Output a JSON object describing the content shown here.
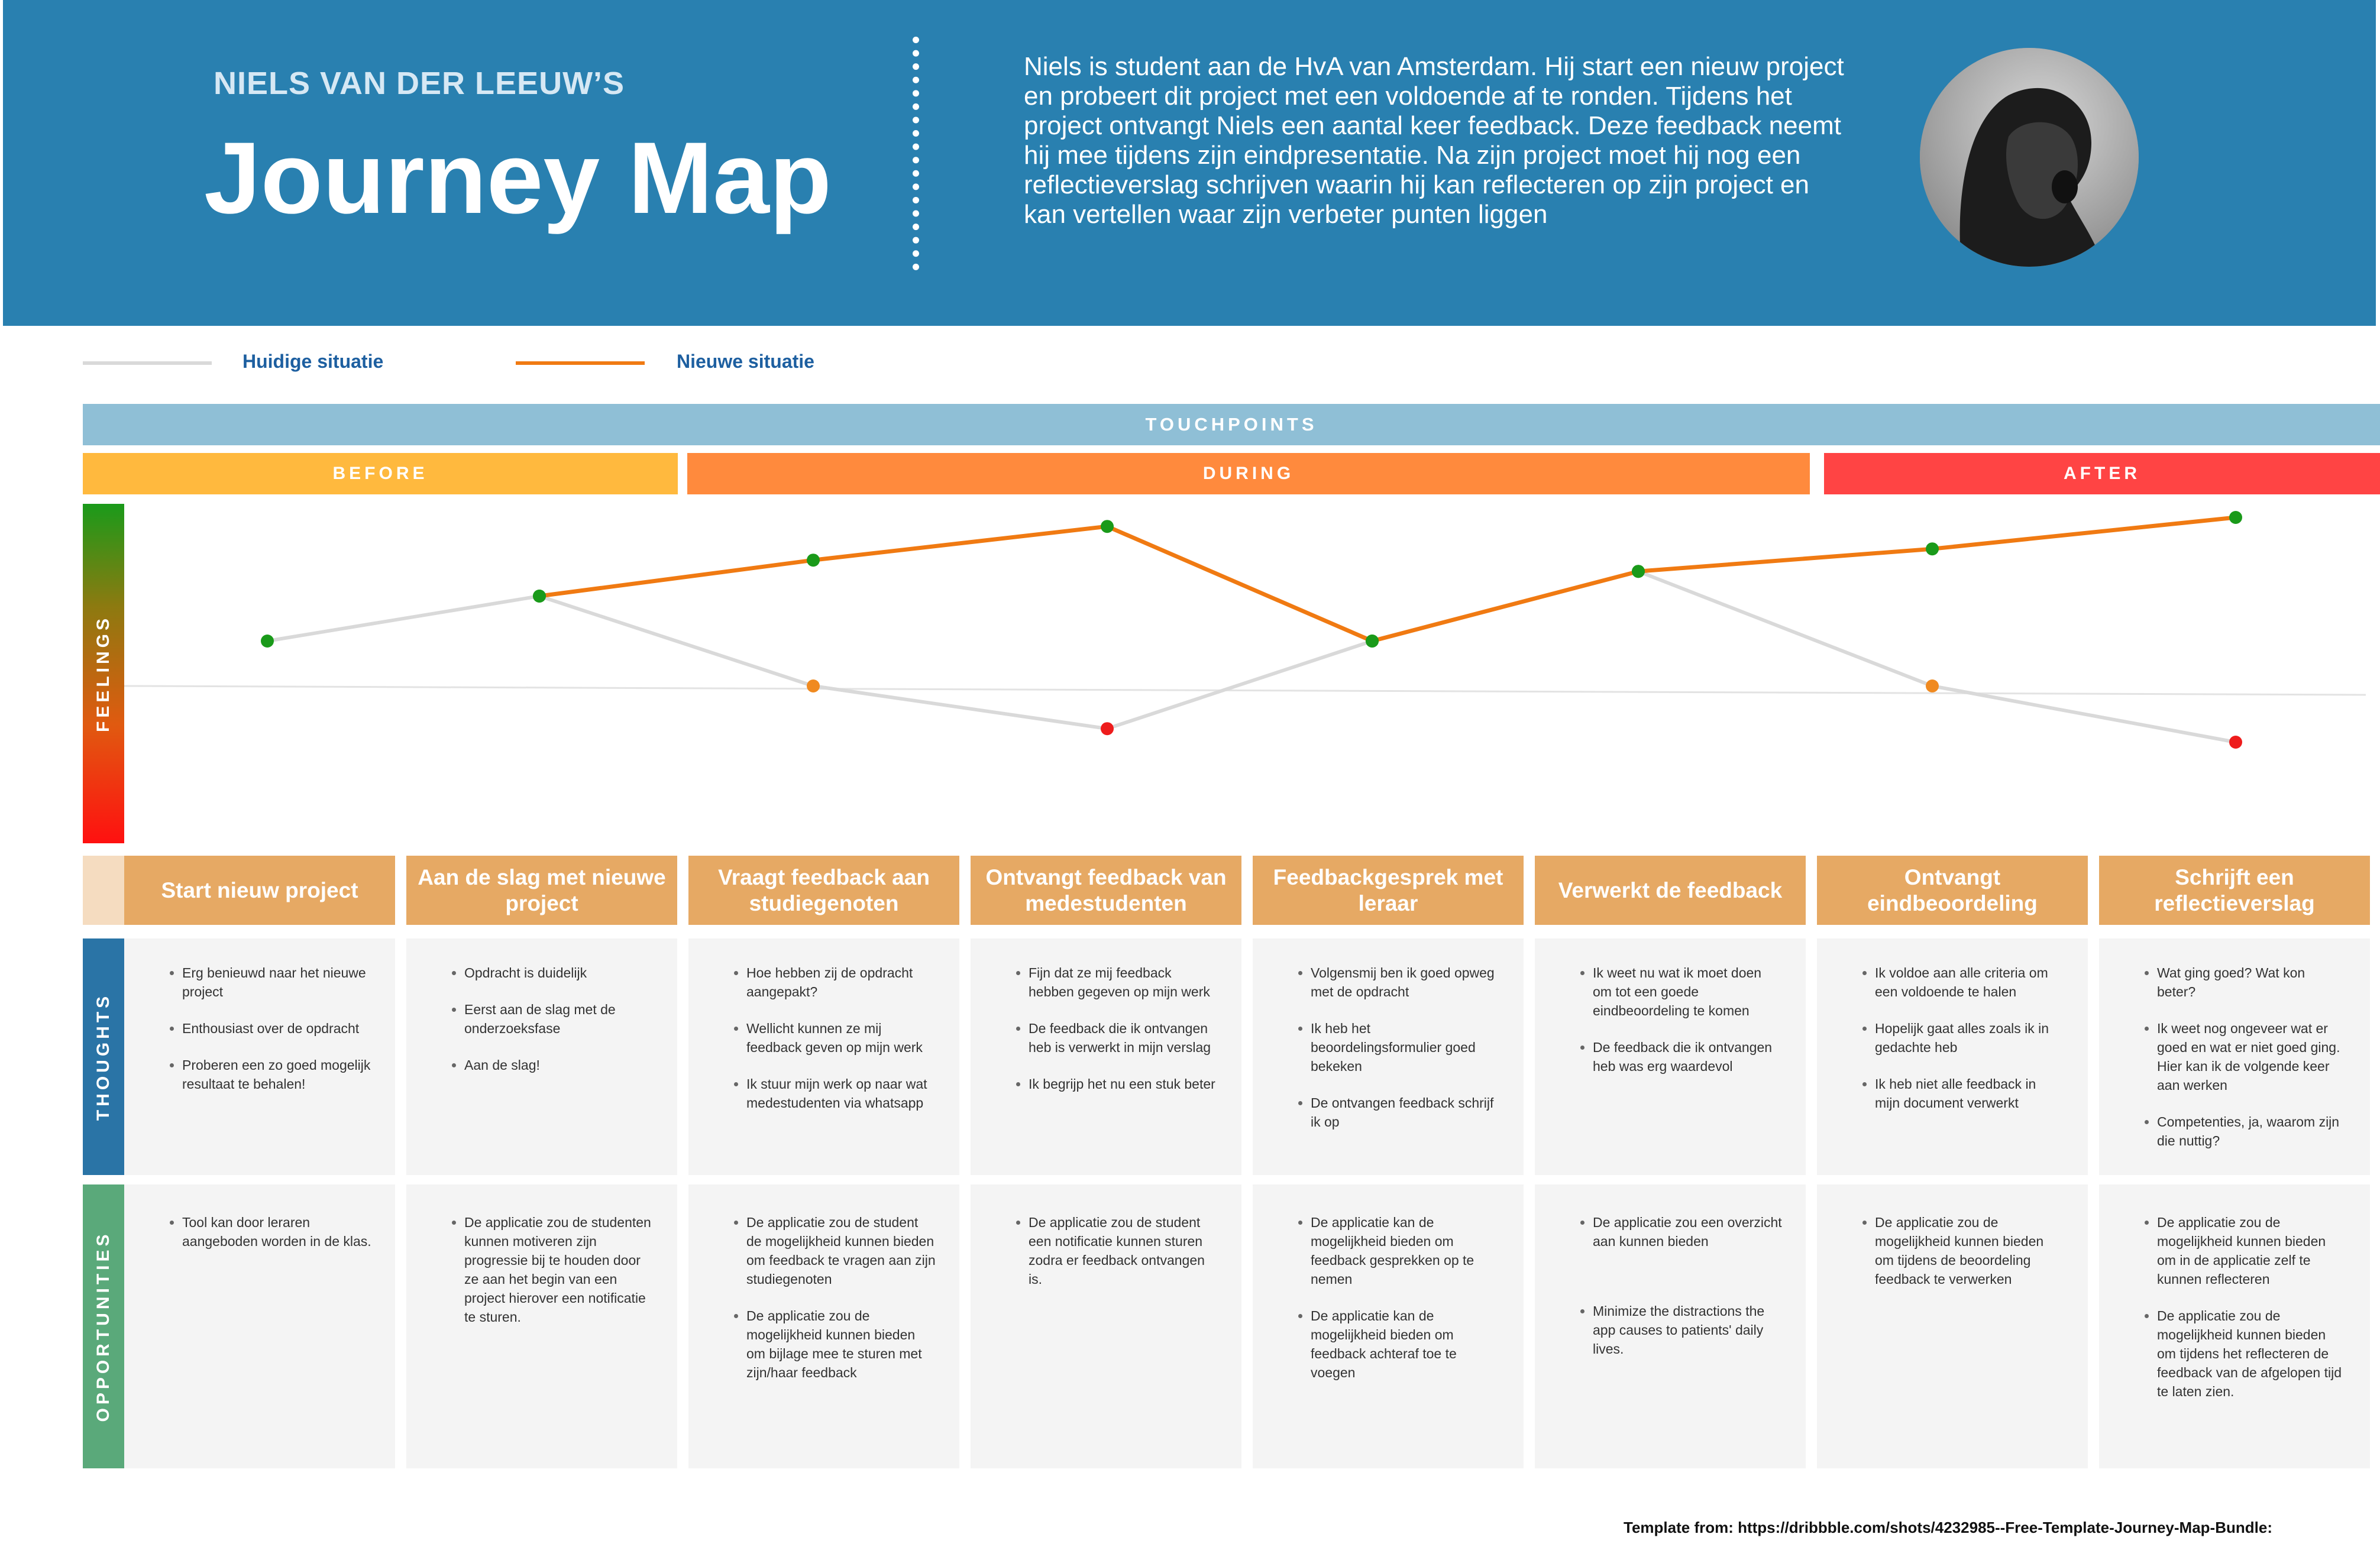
{
  "header": {
    "subtitle": "NIELS VAN DER LEEUW’S",
    "title": "Journey Map",
    "intro": "Niels is student aan de HvA van Amsterdam. Hij start een nieuw project en probeert dit project met een voldoende af te ronden. Tijdens het project ontvangt Niels een aantal keer feedback. Deze feedback neemt hij mee tijdens zijn eindpresentatie. Na zijn project moet hij nog een reflectieverslag schrijven waarin hij kan reflecteren op zijn project en kan vertellen waar zijn verbeter punten liggen"
  },
  "legend": {
    "current": "Huidige situatie",
    "new": "Nieuwe situatie",
    "current_color": "#d9d9d9",
    "new_color": "#f07a12"
  },
  "touchpoints_label": "TOUCHPOINTS",
  "phases": {
    "before": "BEFORE",
    "during": "DURING",
    "after": "AFTER",
    "before_color": "#ffb93e",
    "during_color": "#ff8a3d",
    "after_color": "#ff4444"
  },
  "side_labels": {
    "feelings": "FEELINGS",
    "thoughts": "THOUGHTS",
    "opportunities": "OPPORTUNITIES"
  },
  "steps": [
    "Start nieuw project",
    "Aan de slag met nieuwe project",
    "Vraagt feedback aan studiegenoten",
    "Ontvangt feedback van medestudenten",
    "Feedbackgesprek met leraar",
    "Verwerkt de feedback",
    "Ontvangt eindbeoordeling",
    "Schrijft een reflectieverslag"
  ],
  "thoughts": [
    [
      "Erg benieuwd naar het nieuwe project",
      "Enthousiast over de opdracht",
      "Proberen een zo goed mogelijk resultaat te behalen!"
    ],
    [
      "Opdracht is duidelijk",
      "Eerst aan de slag met de onderzoeksfase",
      "Aan de slag!"
    ],
    [
      "Hoe hebben zij de opdracht aangepakt?",
      "Wellicht kunnen ze mij feedback geven op mijn werk",
      "Ik stuur mijn werk op naar wat medestudenten via whatsapp"
    ],
    [
      "Fijn dat ze mij feedback hebben gegeven op mijn werk",
      "De feedback die ik ontvangen heb is verwerkt in mijn verslag",
      "Ik begrijp het nu een stuk beter"
    ],
    [
      "Volgensmij ben ik goed opweg met de opdracht",
      "Ik heb het beoordelingsformulier goed bekeken",
      "De ontvangen feedback schrijf ik op"
    ],
    [
      "Ik weet nu wat ik moet doen om tot een goede eindbeoordeling te komen",
      "De feedback die ik ontvangen heb was erg waardevol"
    ],
    [
      "Ik voldoe aan alle criteria om een voldoende te halen",
      "Hopelijk gaat alles zoals ik in gedachte heb",
      "Ik heb niet alle feedback in mijn document verwerkt"
    ],
    [
      "Wat ging goed? Wat kon beter?",
      "Ik weet nog ongeveer wat er goed en wat er niet goed ging. Hier kan ik de volgende keer aan werken",
      "Competenties, ja, waarom zijn die nuttig?"
    ]
  ],
  "opportunities": [
    [
      "Tool kan door leraren aangeboden worden in de klas."
    ],
    [
      "De applicatie zou de studenten kunnen motiveren zijn progressie bij te houden door ze aan het begin van een project hierover een notificatie te sturen."
    ],
    [
      "De applicatie zou de student de mogelijkheid kunnen bieden om feedback te vragen aan zijn studiegenoten",
      "De applicatie zou de mogelijkheid kunnen bieden om bijlage mee te sturen met zijn/haar feedback"
    ],
    [
      "De applicatie zou de student een notificatie kunnen sturen zodra er feedback ontvangen is."
    ],
    [
      "De applicatie kan de mogelijkheid bieden om feedback gesprekken op te nemen",
      "De applicatie kan de mogelijkheid bieden om feedback achteraf toe te voegen"
    ],
    [
      "De applicatie zou een overzicht aan kunnen bieden",
      "Minimize the distractions the app causes to patients' daily lives."
    ],
    [
      "De applicatie zou de mogelijkheid kunnen bieden om tijdens de beoordeling feedback te verwerken"
    ],
    [
      "De applicatie zou de mogelijkheid kunnen bieden om in de applicatie zelf te kunnen reflecteren",
      "De applicatie zou de mogelijkheid kunnen bieden om tijdens het reflecteren de feedback van de afgelopen tijd te laten zien."
    ]
  ],
  "chart_data": {
    "type": "line",
    "ylim": [
      -1,
      1
    ],
    "series": [
      {
        "name": "Huidige situatie",
        "color": "#d9d9d9",
        "points": [
          {
            "x": 0,
            "y": 0.2,
            "marker": "#1a9a1a"
          },
          {
            "x": 1,
            "y": 0.4,
            "marker": "#1a9a1a"
          },
          {
            "x": 2,
            "y": 0.0,
            "marker": "#f08a20"
          },
          {
            "x": 3,
            "y": -0.19,
            "marker": "#ee1c1c"
          },
          {
            "x": 4,
            "y": 0.2,
            "marker": "#1a9a1a"
          },
          {
            "x": 5,
            "y": 0.51,
            "marker": "#1a9a1a"
          },
          {
            "x": 6,
            "y": 0.0,
            "marker": "#f08a20"
          },
          {
            "x": 7,
            "y": -0.25,
            "marker": "#ee1c1c"
          }
        ]
      },
      {
        "name": "Nieuwe situatie",
        "color": "#f07a12",
        "points": [
          {
            "x": 1,
            "y": 0.4,
            "marker": "#1a9a1a"
          },
          {
            "x": 2,
            "y": 0.56,
            "marker": "#1a9a1a"
          },
          {
            "x": 3,
            "y": 0.71,
            "marker": "#1a9a1a"
          },
          {
            "x": 4,
            "y": 0.2,
            "marker": "#1a9a1a"
          },
          {
            "x": 5,
            "y": 0.51,
            "marker": "#1a9a1a"
          },
          {
            "x": 6,
            "y": 0.61,
            "marker": "#1a9a1a"
          },
          {
            "x": 7,
            "y": 0.75,
            "marker": "#1a9a1a"
          }
        ]
      }
    ]
  },
  "credit": "Template from: https://dribbble.com/shots/4232985--Free-Template-Journey-Map-Bundle:"
}
